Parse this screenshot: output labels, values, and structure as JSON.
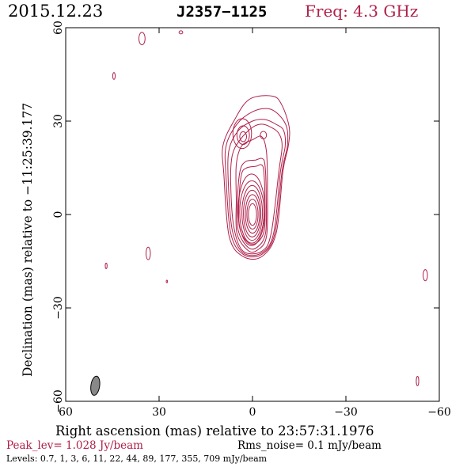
{
  "header": {
    "date": "2015.12.23",
    "source": "J2357−1125",
    "freq": "Freq: 4.3 GHz"
  },
  "footer": {
    "peak": "Peak_lev=  1.028 Jy/beam",
    "rms": "Rms_noise=  0.1 mJy/beam",
    "levels": "Levels: 0.7,   1,   3,   6,  11,  22,  44,  89, 177, 355, 709 mJy/beam"
  },
  "colors": {
    "contour": "#b0204a",
    "accent": "#b0204a",
    "text": "#000000",
    "beam_fill": "#888888"
  },
  "chart_data": {
    "type": "contour",
    "title": "J2357−1125",
    "xlabel": "Right ascension (mas) relative to 23:57:31.1976",
    "ylabel": "Declination (mas) relative to −11:25:39.177",
    "xlim": [
      60,
      -60
    ],
    "ylim": [
      -60,
      60
    ],
    "x_ticks": [
      60,
      30,
      0,
      -30,
      -60
    ],
    "y_ticks": [
      60,
      30,
      0,
      -30,
      -60
    ],
    "x_tick_labels": [
      "60",
      "30",
      "0",
      "−30",
      "−60"
    ],
    "y_tick_labels": [
      "60",
      "30",
      "0",
      "−30",
      "−60"
    ],
    "levels_mJy": [
      0.7,
      1,
      3,
      6,
      11,
      22,
      44,
      89,
      177,
      355,
      709
    ],
    "core_contours": [
      {
        "cx": 0,
        "cy": 0,
        "rx": 1.3,
        "ry": 3.5
      },
      {
        "cx": 0,
        "cy": 0.1,
        "rx": 1.8,
        "ry": 4.8
      },
      {
        "cx": 0,
        "cy": 0.2,
        "rx": 2.3,
        "ry": 6.2
      },
      {
        "cx": 0.1,
        "cy": 0.3,
        "rx": 2.8,
        "ry": 7.5
      },
      {
        "cx": 0.1,
        "cy": 0.5,
        "rx": 3.3,
        "ry": 8.8
      },
      {
        "cx": 0.2,
        "cy": 0.8,
        "rx": 3.9,
        "ry": 10.0
      },
      {
        "cx": 0.3,
        "cy": 1.5,
        "rx": 4.3,
        "ry": 11.5
      }
    ],
    "jet_contours": [
      [
        [
          1.5,
          -9
        ],
        [
          -1.5,
          -9
        ],
        [
          -3.8,
          -5
        ],
        [
          -4.0,
          5
        ],
        [
          -3.6,
          14
        ],
        [
          -2.8,
          16
        ],
        [
          -1.2,
          15.5
        ],
        [
          1.8,
          15
        ],
        [
          3.5,
          13
        ],
        [
          4.3,
          5
        ],
        [
          4.2,
          -4
        ]
      ],
      [
        [
          1.5,
          -10.5
        ],
        [
          -1.5,
          -10.5
        ],
        [
          -4.2,
          -6
        ],
        [
          -4.4,
          6
        ],
        [
          -4.0,
          16
        ],
        [
          -3.0,
          18
        ],
        [
          -1.0,
          17.5
        ],
        [
          2.2,
          17
        ],
        [
          4.0,
          14
        ],
        [
          4.8,
          5
        ],
        [
          4.6,
          -5
        ]
      ],
      [
        [
          1.5,
          -11.5
        ],
        [
          -1.5,
          -11.5
        ],
        [
          -4.5,
          -7
        ],
        [
          -4.8,
          8
        ],
        [
          -4.5,
          20
        ],
        [
          -3.0,
          25
        ],
        [
          0.0,
          24
        ],
        [
          3.5,
          22
        ],
        [
          5.2,
          16
        ],
        [
          5.2,
          5
        ],
        [
          5.0,
          -6
        ]
      ],
      [
        [
          3,
          -11.8
        ],
        [
          -3,
          -11.8
        ],
        [
          -6,
          -6
        ],
        [
          -8.5,
          14
        ],
        [
          -9.5,
          22
        ],
        [
          -8.5,
          26
        ],
        [
          -6,
          28
        ],
        [
          -3,
          29
        ],
        [
          0,
          28
        ],
        [
          4,
          24
        ],
        [
          6.5,
          19
        ],
        [
          7,
          10
        ],
        [
          6,
          -4
        ]
      ],
      [
        [
          3,
          -12.3
        ],
        [
          -3,
          -12.3
        ],
        [
          -6.8,
          -6
        ],
        [
          -9,
          14
        ],
        [
          -10.5,
          22
        ],
        [
          -10,
          27
        ],
        [
          -7.5,
          29
        ],
        [
          -4,
          30.5
        ],
        [
          0,
          30
        ],
        [
          4.5,
          27
        ],
        [
          7.5,
          21
        ],
        [
          7.8,
          11
        ],
        [
          6.5,
          -5
        ]
      ],
      [
        [
          3,
          -12.8
        ],
        [
          -3,
          -12.8
        ],
        [
          -7.2,
          -6
        ],
        [
          -9.5,
          14
        ],
        [
          -11.2,
          22
        ],
        [
          -11,
          28
        ],
        [
          -8.5,
          32
        ],
        [
          -5,
          34
        ],
        [
          0,
          33
        ],
        [
          5,
          29
        ],
        [
          8.5,
          22
        ],
        [
          8.5,
          12
        ],
        [
          7,
          -6
        ]
      ],
      [
        [
          3,
          -13.5
        ],
        [
          -3,
          -13.5
        ],
        [
          -7.6,
          -6
        ],
        [
          -9.8,
          14
        ],
        [
          -11.5,
          22
        ],
        [
          -11.8,
          28
        ],
        [
          -9.5,
          35
        ],
        [
          -6.5,
          38
        ],
        [
          1.0,
          37
        ],
        [
          6,
          30
        ],
        [
          9.5,
          22
        ],
        [
          9.2,
          13
        ],
        [
          7.5,
          -7
        ]
      ]
    ],
    "blobs": [
      {
        "cx": 3.0,
        "cy": 25.0,
        "rx": 1.1,
        "ry": 1.6
      },
      {
        "cx": 3.0,
        "cy": 25.5,
        "rx": 2.0,
        "ry": 3.0
      },
      {
        "cx": 3.3,
        "cy": 26.0,
        "rx": 3.0,
        "ry": 4.8
      },
      {
        "cx": -3.5,
        "cy": 25.5,
        "rx": 1.0,
        "ry": 1.2
      },
      {
        "cx": 35.5,
        "cy": 56.5,
        "rx": 1.0,
        "ry": 2.0
      },
      {
        "cx": 23,
        "cy": 58.5,
        "rx": 0.6,
        "ry": 0.5
      },
      {
        "cx": 44.5,
        "cy": 44.5,
        "rx": 0.4,
        "ry": 1.1
      },
      {
        "cx": 33.5,
        "cy": -12.5,
        "rx": 0.7,
        "ry": 2.0
      },
      {
        "cx": 47,
        "cy": -16.5,
        "rx": 0.3,
        "ry": 0.9
      },
      {
        "cx": 27.5,
        "cy": -21.5,
        "rx": 0.2,
        "ry": 0.4
      },
      {
        "cx": -55.5,
        "cy": -19.5,
        "rx": 0.7,
        "ry": 1.8
      },
      {
        "cx": -53,
        "cy": -53.5,
        "rx": 0.4,
        "ry": 1.5
      }
    ],
    "beam": {
      "cx": 50.5,
      "cy": -55.0,
      "rx": 1.4,
      "ry": 3.1,
      "pa_deg": 8
    }
  }
}
